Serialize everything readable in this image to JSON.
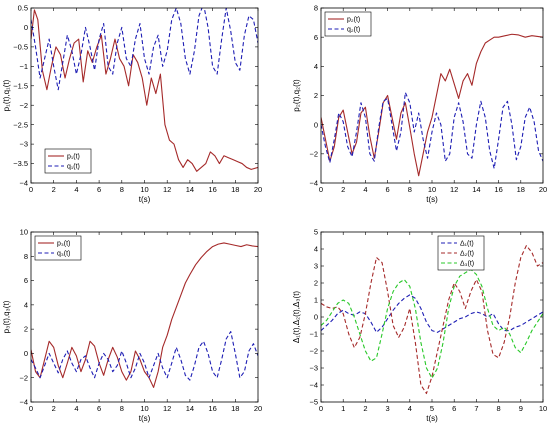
{
  "chart_data": [
    {
      "type": "line",
      "xlabel": "t(s)",
      "ylabel": "p₁(t),q₁(t)",
      "xlim": [
        0,
        20
      ],
      "ylim": [
        -4,
        0.5
      ],
      "xticks": [
        0,
        2,
        4,
        6,
        8,
        10,
        12,
        14,
        16,
        18,
        20
      ],
      "yticks": [
        -4,
        -3.5,
        -3,
        -2.5,
        -2,
        -1.5,
        -1,
        -0.5,
        0,
        0.5
      ],
      "legend_position": "bottom-left",
      "series": [
        {
          "name": "p₁(t)",
          "color": "#a52a2a",
          "dash": "solid",
          "x": [
            0,
            0.3,
            0.6,
            1,
            1.4,
            1.8,
            2.2,
            2.6,
            3,
            3.4,
            3.8,
            4.2,
            4.6,
            5,
            5.4,
            5.8,
            6.2,
            6.6,
            7,
            7.4,
            7.8,
            8.2,
            8.6,
            9,
            9.4,
            9.8,
            10.2,
            10.6,
            11,
            11.4,
            11.8,
            12.2,
            12.6,
            13,
            13.4,
            13.8,
            14.2,
            14.6,
            15,
            15.4,
            15.8,
            16.2,
            16.6,
            17,
            17.4,
            17.8,
            18.2,
            18.6,
            19,
            19.4,
            20
          ],
          "y": [
            -0.3,
            0.45,
            0.2,
            -1.1,
            -1.6,
            -1.0,
            -0.5,
            -0.7,
            -1.3,
            -0.8,
            -0.4,
            -0.3,
            -1.4,
            -0.6,
            -0.9,
            -0.5,
            -0.2,
            -1.2,
            -0.8,
            -0.3,
            -0.8,
            -1.0,
            -1.5,
            -0.7,
            -0.9,
            -1.3,
            -2.0,
            -1.3,
            -1.7,
            -1.2,
            -2.5,
            -2.9,
            -3.0,
            -3.4,
            -3.6,
            -3.4,
            -3.5,
            -3.7,
            -3.6,
            -3.5,
            -3.2,
            -3.3,
            -3.5,
            -3.3,
            -3.35,
            -3.4,
            -3.45,
            -3.5,
            -3.6,
            -3.65,
            -3.6
          ]
        },
        {
          "name": "q₁(t)",
          "color": "#1e1eb4",
          "dash": "dashed",
          "x": [
            0,
            0.4,
            0.8,
            1.2,
            1.6,
            2,
            2.4,
            2.8,
            3.2,
            3.6,
            4,
            4.4,
            4.8,
            5.2,
            5.6,
            6,
            6.4,
            6.8,
            7.2,
            7.6,
            8,
            8.4,
            8.8,
            9.2,
            9.6,
            10,
            10.4,
            10.8,
            11.2,
            11.6,
            12,
            12.4,
            12.8,
            13.2,
            13.6,
            14,
            14.4,
            14.8,
            15.2,
            15.6,
            16,
            16.4,
            16.8,
            17.2,
            17.6,
            18,
            18.4,
            18.8,
            19.2,
            19.6,
            20
          ],
          "y": [
            0.2,
            -0.5,
            -1.3,
            -0.8,
            -0.3,
            -1.0,
            -1.6,
            -0.9,
            -0.2,
            -0.6,
            -1.2,
            -0.7,
            0.0,
            -0.5,
            -1.1,
            -0.3,
            0.1,
            -1.0,
            -1.2,
            -0.4,
            0.0,
            -0.8,
            -1.0,
            -0.3,
            0.1,
            -0.8,
            -1.2,
            -0.5,
            -0.2,
            -1.0,
            -0.6,
            0.2,
            0.5,
            0.1,
            -0.8,
            -1.2,
            -0.6,
            0.3,
            0.6,
            0.0,
            -1.0,
            -1.2,
            -0.3,
            0.5,
            -0.1,
            -0.9,
            -1.1,
            -0.2,
            0.3,
            0.2,
            -0.4
          ]
        }
      ]
    },
    {
      "type": "line",
      "xlabel": "t(s)",
      "ylabel": "p₂(t),q₂(t)",
      "xlim": [
        0,
        20
      ],
      "ylim": [
        -4,
        8
      ],
      "xticks": [
        0,
        2,
        4,
        6,
        8,
        10,
        12,
        14,
        16,
        18,
        20
      ],
      "yticks": [
        -4,
        -2,
        0,
        2,
        4,
        6,
        8
      ],
      "legend_position": "top-left",
      "series": [
        {
          "name": "p₂(t)",
          "color": "#a52a2a",
          "dash": "solid",
          "x": [
            0,
            0.4,
            0.8,
            1.2,
            1.6,
            2,
            2.4,
            2.8,
            3.2,
            3.6,
            4,
            4.4,
            4.8,
            5.2,
            5.6,
            6,
            6.4,
            6.8,
            7.2,
            7.6,
            8,
            8.4,
            8.8,
            9.2,
            9.6,
            10,
            10.4,
            10.8,
            11.2,
            11.6,
            12,
            12.4,
            12.8,
            13.2,
            13.6,
            14,
            14.4,
            14.8,
            15.2,
            15.6,
            16,
            16.6,
            17.2,
            17.8,
            18.4,
            19,
            19.5,
            20
          ],
          "y": [
            0.5,
            -1.0,
            -2.5,
            -1.5,
            0.5,
            1.0,
            -0.5,
            -2.0,
            -1.2,
            0.8,
            1.2,
            -0.8,
            -2.3,
            -0.5,
            1.5,
            2.0,
            0.5,
            -1.0,
            0.8,
            1.5,
            -0.2,
            -2.0,
            -3.5,
            -2.0,
            -0.5,
            0.5,
            2.0,
            3.5,
            3.0,
            3.8,
            2.8,
            1.8,
            3.0,
            3.5,
            2.7,
            4.2,
            5.0,
            5.6,
            5.8,
            6.0,
            6.0,
            6.1,
            6.2,
            6.15,
            6.0,
            6.1,
            6.05,
            6.0
          ]
        },
        {
          "name": "q₂(t)",
          "color": "#1e1eb4",
          "dash": "dashed",
          "x": [
            0,
            0.4,
            0.8,
            1.2,
            1.6,
            2,
            2.4,
            2.8,
            3.2,
            3.6,
            4,
            4.4,
            4.8,
            5.2,
            5.6,
            6,
            6.4,
            6.8,
            7.2,
            7.6,
            8,
            8.4,
            8.8,
            9.2,
            9.6,
            10,
            10.4,
            10.8,
            11.2,
            11.6,
            12,
            12.4,
            12.8,
            13.2,
            13.6,
            14,
            14.4,
            14.8,
            15.2,
            15.6,
            16,
            16.4,
            16.8,
            17.2,
            17.6,
            18,
            18.4,
            18.8,
            19.2,
            19.6,
            20
          ],
          "y": [
            0.0,
            -1.5,
            -2.6,
            -1.0,
            0.8,
            0.2,
            -1.5,
            -2.2,
            -0.5,
            1.5,
            0.5,
            -2.0,
            -2.5,
            -0.2,
            1.6,
            1.8,
            0.0,
            -1.8,
            -0.5,
            2.2,
            1.5,
            -0.5,
            0.8,
            -1.0,
            -2.3,
            -0.5,
            0.8,
            0.0,
            -2.5,
            -2.0,
            0.5,
            1.5,
            0.2,
            -2.0,
            -2.3,
            0.0,
            1.6,
            0.5,
            -1.8,
            -3.0,
            -1.0,
            1.2,
            1.6,
            0.0,
            -2.4,
            -1.5,
            0.5,
            1.2,
            0.2,
            -1.8,
            -2.5
          ]
        }
      ]
    },
    {
      "type": "line",
      "xlabel": "t(s)",
      "ylabel": "p₃(t),q₃(t)",
      "xlim": [
        0,
        20
      ],
      "ylim": [
        -4,
        10
      ],
      "xticks": [
        0,
        2,
        4,
        6,
        8,
        10,
        12,
        14,
        16,
        18,
        20
      ],
      "yticks": [
        -4,
        -2,
        0,
        2,
        4,
        6,
        8,
        10
      ],
      "legend_position": "top-left",
      "series": [
        {
          "name": "p₃(t)",
          "color": "#a52a2a",
          "dash": "solid",
          "x": [
            0,
            0.4,
            0.8,
            1.2,
            1.6,
            2,
            2.4,
            2.8,
            3.2,
            3.6,
            4,
            4.4,
            4.8,
            5.2,
            5.6,
            6,
            6.4,
            6.8,
            7.2,
            7.6,
            8,
            8.4,
            8.8,
            9.2,
            9.6,
            10,
            10.4,
            10.8,
            11.2,
            11.6,
            12,
            12.4,
            12.8,
            13.2,
            13.6,
            14,
            14.5,
            15,
            15.5,
            16,
            16.5,
            17,
            17.5,
            18,
            18.5,
            19,
            19.5,
            20
          ],
          "y": [
            0.3,
            -1.5,
            -2.0,
            -0.5,
            1.0,
            0.5,
            -1.0,
            -2.0,
            -0.8,
            0.5,
            -0.2,
            -1.5,
            -0.5,
            1.0,
            0.6,
            -0.8,
            -1.8,
            -0.5,
            0.5,
            -0.3,
            -1.5,
            -2.2,
            -1.5,
            0.2,
            -0.5,
            -1.5,
            -2.0,
            -2.8,
            -1.5,
            0.5,
            1.5,
            2.8,
            3.8,
            4.8,
            5.8,
            6.5,
            7.3,
            7.9,
            8.4,
            8.8,
            9.0,
            9.1,
            9.0,
            8.9,
            8.8,
            8.95,
            8.85,
            8.8
          ]
        },
        {
          "name": "q₃(t)",
          "color": "#1e1eb4",
          "dash": "dashed",
          "x": [
            0,
            0.4,
            0.8,
            1.2,
            1.6,
            2,
            2.4,
            2.8,
            3.2,
            3.6,
            4,
            4.4,
            4.8,
            5.2,
            5.6,
            6,
            6.4,
            6.8,
            7.2,
            7.6,
            8,
            8.4,
            8.8,
            9.2,
            9.6,
            10,
            10.4,
            10.8,
            11.2,
            11.6,
            12,
            12.4,
            12.8,
            13.2,
            13.6,
            14,
            14.4,
            14.8,
            15.2,
            15.6,
            16,
            16.4,
            16.8,
            17.2,
            17.6,
            18,
            18.4,
            18.8,
            19.2,
            19.6,
            20
          ],
          "y": [
            -0.5,
            -1.2,
            -2.0,
            -1.0,
            0.0,
            -0.8,
            -1.6,
            -0.5,
            0.2,
            -0.8,
            -1.5,
            -0.5,
            -0.2,
            -1.2,
            -2.0,
            -0.8,
            0.0,
            -0.5,
            -1.5,
            -1.0,
            0.2,
            -0.8,
            -2.0,
            -1.2,
            0.0,
            -0.8,
            -2.0,
            -1.0,
            0.0,
            -1.2,
            -2.0,
            -0.8,
            0.5,
            -0.5,
            -1.8,
            -2.2,
            -1.0,
            0.5,
            1.0,
            0.0,
            -1.5,
            -2.0,
            -0.5,
            1.2,
            1.8,
            0.0,
            -2.0,
            -1.5,
            0.2,
            0.8,
            -0.2
          ]
        }
      ]
    },
    {
      "type": "line",
      "xlabel": "t(s)",
      "ylabel": "Δ₁(t),Δ₂(t),Δ₃(t)",
      "xlim": [
        0,
        10
      ],
      "ylim": [
        -5,
        5
      ],
      "xticks": [
        0,
        1,
        2,
        3,
        4,
        5,
        6,
        7,
        8,
        9,
        10
      ],
      "yticks": [
        -5,
        -4,
        -3,
        -2,
        -1,
        0,
        1,
        2,
        3,
        4,
        5
      ],
      "legend_position": "top-center",
      "series": [
        {
          "name": "Δ₁(t)",
          "color": "#1e1eb4",
          "dash": "dashed",
          "x": [
            0,
            0.25,
            0.5,
            0.75,
            1,
            1.25,
            1.5,
            1.75,
            2,
            2.25,
            2.5,
            2.75,
            3,
            3.25,
            3.5,
            3.75,
            4,
            4.25,
            4.5,
            4.75,
            5,
            5.25,
            5.5,
            5.75,
            6,
            6.25,
            6.5,
            6.75,
            7,
            7.25,
            7.5,
            7.75,
            8,
            8.25,
            8.5,
            8.75,
            9,
            9.25,
            9.5,
            9.75,
            10
          ],
          "y": [
            -0.8,
            -0.5,
            -0.2,
            0.2,
            0.4,
            0.2,
            0.1,
            0.3,
            0.2,
            -0.3,
            -0.9,
            -0.6,
            -0.1,
            0.4,
            0.8,
            1.1,
            1.3,
            1.1,
            0.5,
            -0.3,
            -0.8,
            -0.9,
            -0.7,
            -0.5,
            -0.3,
            -0.1,
            0.0,
            0.2,
            0.3,
            0.2,
            0.0,
            0.2,
            -0.4,
            -0.8,
            -0.8,
            -0.6,
            -0.5,
            -0.3,
            -0.1,
            0.1,
            0.3
          ]
        },
        {
          "name": "Δ₂(t)",
          "color": "#a52a2a",
          "dash": "dashed",
          "x": [
            0,
            0.25,
            0.5,
            0.75,
            1,
            1.25,
            1.5,
            1.75,
            2,
            2.25,
            2.5,
            2.75,
            3,
            3.25,
            3.5,
            3.75,
            4,
            4.25,
            4.5,
            4.75,
            5,
            5.25,
            5.5,
            5.75,
            6,
            6.25,
            6.5,
            6.75,
            7,
            7.25,
            7.5,
            7.75,
            8,
            8.25,
            8.5,
            8.75,
            9,
            9.25,
            9.5,
            9.75,
            10
          ],
          "y": [
            0.8,
            0.6,
            0.5,
            0.6,
            0.2,
            -1.0,
            -1.8,
            -1.2,
            0.2,
            2.0,
            3.5,
            3.2,
            1.5,
            -0.5,
            -1.2,
            -0.6,
            0.5,
            -1.5,
            -4.0,
            -4.5,
            -3.5,
            -2.0,
            -0.5,
            1.0,
            2.0,
            1.5,
            0.5,
            1.5,
            2.2,
            1.5,
            -0.8,
            -2.2,
            -2.4,
            -1.5,
            0.0,
            2.0,
            3.5,
            4.2,
            3.8,
            3.0,
            3.2
          ]
        },
        {
          "name": "Δ₃(t)",
          "color": "#28c828",
          "dash": "dashed",
          "x": [
            0,
            0.25,
            0.5,
            0.75,
            1,
            1.25,
            1.5,
            1.75,
            2,
            2.25,
            2.5,
            2.75,
            3,
            3.25,
            3.5,
            3.75,
            4,
            4.25,
            4.5,
            4.75,
            5,
            5.25,
            5.5,
            5.75,
            6,
            6.25,
            6.5,
            6.75,
            7,
            7.25,
            7.5,
            7.75,
            8,
            8.25,
            8.5,
            8.75,
            9,
            9.25,
            9.5,
            9.75,
            10
          ],
          "y": [
            -0.5,
            -0.2,
            0.3,
            0.8,
            1.0,
            0.8,
            0.0,
            -1.0,
            -2.0,
            -2.6,
            -2.4,
            -1.0,
            0.5,
            1.5,
            2.0,
            2.2,
            1.8,
            0.5,
            -1.5,
            -3.0,
            -3.6,
            -3.0,
            -1.5,
            0.5,
            1.8,
            2.4,
            2.6,
            2.8,
            2.5,
            1.8,
            0.5,
            -0.5,
            -0.8,
            -0.6,
            -1.0,
            -1.8,
            -2.1,
            -1.5,
            -0.8,
            -0.3,
            0.2
          ]
        }
      ]
    }
  ]
}
